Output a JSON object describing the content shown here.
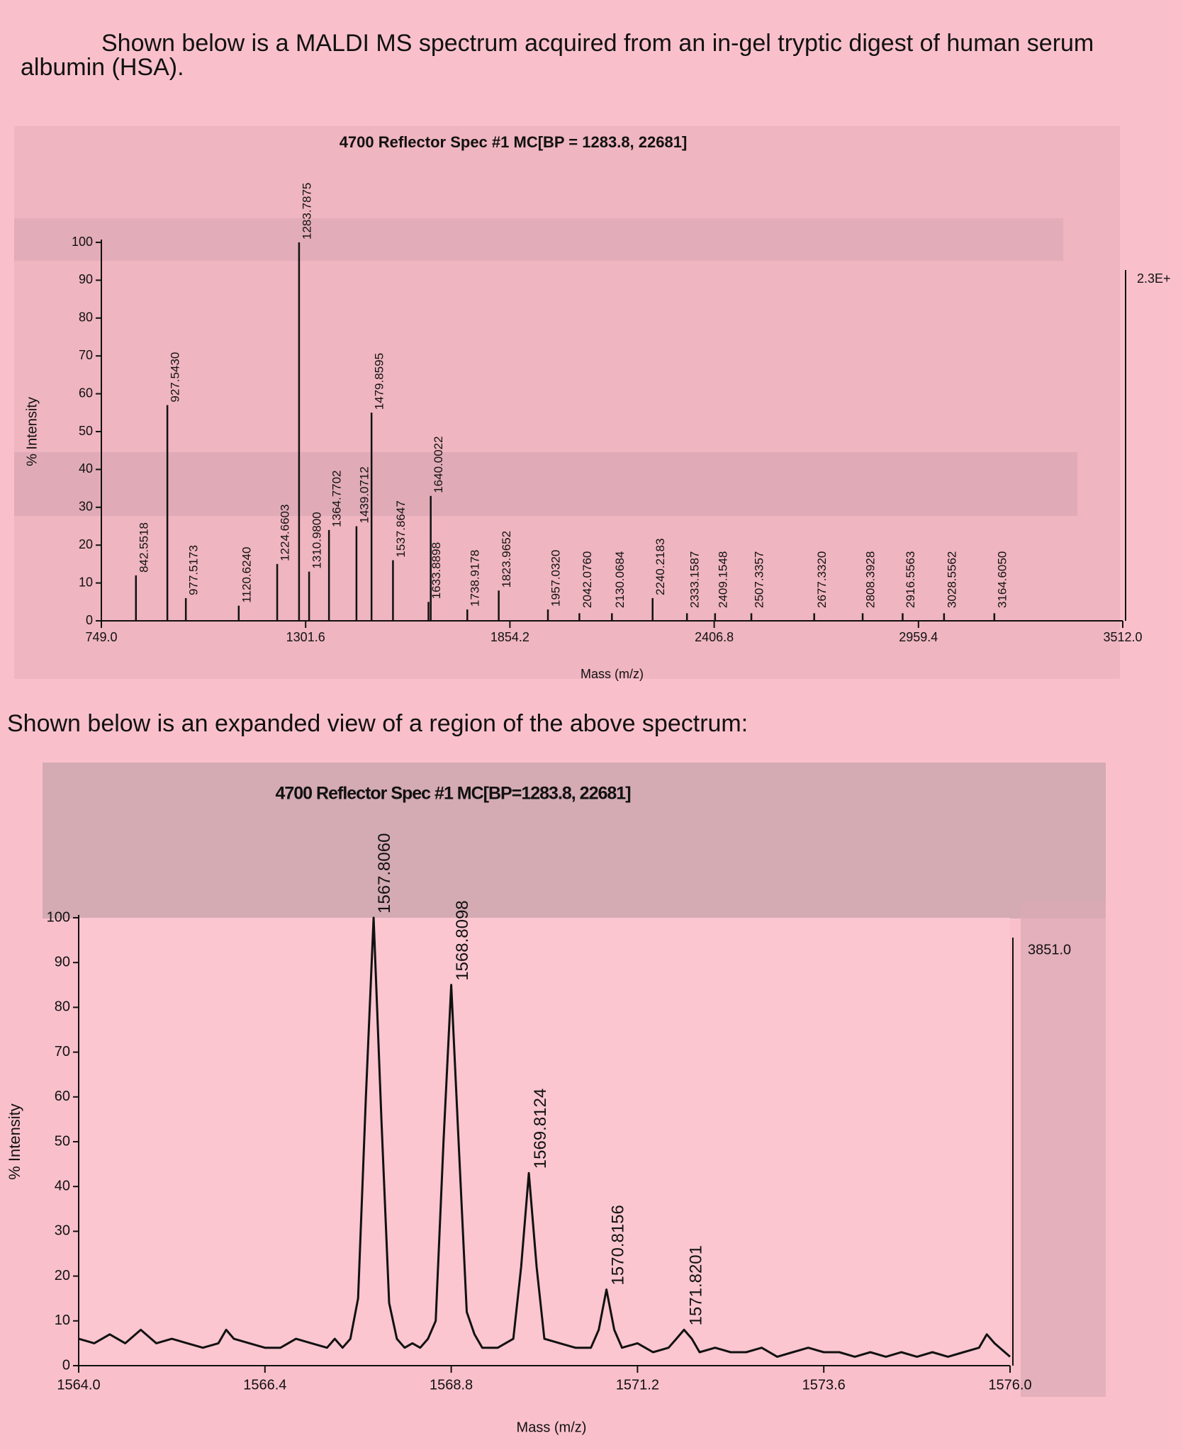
{
  "paragraphs": [
    "Shown below is a MALDI MS spectrum acquired from an in-gel tryptic digest of human serum albumin (HSA).",
    "Shown below is an expanded view of a region of the above spectrum:"
  ],
  "chart_data": [
    {
      "type": "stem",
      "title": "4700 Reflector Spec #1 MC[BP = 1283.8, 22681]",
      "xlabel": "Mass (m/z)",
      "ylabel": "% Intensity",
      "right_label": "2.3E+",
      "color": "#111111",
      "xlim": [
        749,
        3512
      ],
      "xticks": [
        {
          "value": 749,
          "label": "749.0"
        },
        {
          "value": 1301.6,
          "label": "1301.6"
        },
        {
          "value": 1854.2,
          "label": "1854.2"
        },
        {
          "value": 2406.8,
          "label": "2406.8"
        },
        {
          "value": 2959.4,
          "label": "2959.4"
        },
        {
          "value": 3512,
          "label": "3512.0"
        }
      ],
      "ylim": [
        0,
        100
      ],
      "yticks": [
        0,
        10,
        20,
        30,
        40,
        50,
        60,
        70,
        80,
        90,
        100
      ],
      "x": [
        842.5518,
        927.543,
        977.5173,
        1120.624,
        1224.6603,
        1283.7875,
        1310.98,
        1364.7702,
        1439.0712,
        1479.8595,
        1537.8647,
        1633.8898,
        1640.0022,
        1738.9178,
        1823.9652,
        1957.032,
        2042.076,
        2130.0684,
        2240.2183,
        2333.1587,
        2409.1548,
        2507.3357,
        2677.332,
        2808.3928,
        2916.5563,
        3028.5562,
        3164.605
      ],
      "labels": [
        "842.5518",
        "927.5430",
        "977.5173",
        "1120.6240",
        "1224.6603",
        "1283.7875",
        "1310.9800",
        "1364.7702",
        "1439.0712",
        "1479.8595",
        "1537.8647",
        "1633.8898",
        "1640.0022",
        "1738.9178",
        "1823.9652",
        "1957.0320",
        "2042.0760",
        "2130.0684",
        "2240.2183",
        "2333.1587",
        "2409.1548",
        "2507.3357",
        "2677.3320",
        "2808.3928",
        "2916.5563",
        "3028.5562",
        "3164.6050"
      ],
      "values": [
        12,
        57,
        6,
        4,
        15,
        100,
        13,
        24,
        25,
        55,
        16,
        5,
        33,
        3,
        8,
        3,
        2,
        2,
        6,
        2,
        2,
        2,
        2,
        2,
        2,
        2,
        2
      ]
    },
    {
      "type": "line",
      "title": "4700 Reflector Spec #1 MC[BP=1283.8, 22681]",
      "xlabel": "Mass (m/z)",
      "ylabel": "% Intensity",
      "right_label": "3851.0",
      "color": "#111111",
      "xlim": [
        1564,
        1576
      ],
      "xticks": [
        {
          "value": 1564,
          "label": "1564.0"
        },
        {
          "value": 1566.4,
          "label": "1566.4"
        },
        {
          "value": 1568.8,
          "label": "1568.8"
        },
        {
          "value": 1571.2,
          "label": "1571.2"
        },
        {
          "value": 1573.6,
          "label": "1573.6"
        },
        {
          "value": 1576,
          "label": "1576.0"
        }
      ],
      "ylim": [
        0,
        100
      ],
      "yticks": [
        0,
        10,
        20,
        30,
        40,
        50,
        60,
        70,
        80,
        90,
        100
      ],
      "x": [
        1564.0,
        1564.2,
        1564.4,
        1564.6,
        1564.8,
        1565.0,
        1565.2,
        1565.4,
        1565.6,
        1565.8,
        1565.9,
        1566.0,
        1566.2,
        1566.4,
        1566.6,
        1566.8,
        1567.0,
        1567.2,
        1567.3,
        1567.4,
        1567.5,
        1567.6,
        1567.7,
        1567.8,
        1567.9,
        1568.0,
        1568.1,
        1568.2,
        1568.3,
        1568.4,
        1568.5,
        1568.6,
        1568.7,
        1568.8,
        1568.9,
        1569.0,
        1569.1,
        1569.2,
        1569.4,
        1569.6,
        1569.7,
        1569.8,
        1569.9,
        1570.0,
        1570.2,
        1570.4,
        1570.6,
        1570.7,
        1570.8,
        1570.9,
        1571.0,
        1571.2,
        1571.4,
        1571.6,
        1571.7,
        1571.8,
        1571.9,
        1572.0,
        1572.2,
        1572.4,
        1572.6,
        1572.8,
        1573.0,
        1573.2,
        1573.4,
        1573.6,
        1573.8,
        1574.0,
        1574.2,
        1574.4,
        1574.6,
        1574.8,
        1575.0,
        1575.2,
        1575.4,
        1575.6,
        1575.7,
        1575.8,
        1576.0
      ],
      "values": [
        6,
        5,
        7,
        5,
        8,
        5,
        6,
        5,
        4,
        5,
        8,
        6,
        5,
        4,
        4,
        6,
        5,
        4,
        6,
        4,
        6,
        15,
        60,
        100,
        55,
        14,
        6,
        4,
        5,
        4,
        6,
        10,
        50,
        85,
        48,
        12,
        7,
        4,
        4,
        6,
        22,
        43,
        22,
        6,
        5,
        4,
        4,
        8,
        17,
        8,
        4,
        5,
        3,
        4,
        6,
        8,
        6,
        3,
        4,
        3,
        3,
        4,
        2,
        3,
        4,
        3,
        3,
        2,
        3,
        2,
        3,
        2,
        3,
        2,
        3,
        4,
        7,
        5,
        2
      ],
      "peak_labels": [
        {
          "x": 1567.806,
          "y": 100,
          "label": "1567.8060"
        },
        {
          "x": 1568.8098,
          "y": 85,
          "label": "1568.8098"
        },
        {
          "x": 1569.8124,
          "y": 43,
          "label": "1569.8124"
        },
        {
          "x": 1570.8156,
          "y": 17,
          "label": "1570.8156"
        },
        {
          "x": 1571.8201,
          "y": 8,
          "label": "1571.8201"
        }
      ]
    }
  ]
}
